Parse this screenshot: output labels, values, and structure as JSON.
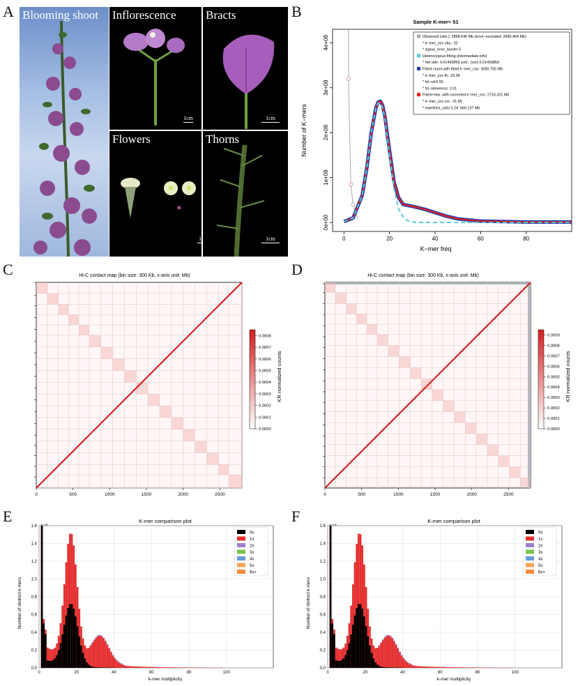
{
  "panel_labels": {
    "A": "A",
    "B": "B",
    "C": "C",
    "D": "D",
    "E": "E",
    "F": "F"
  },
  "panel_a": {
    "blooming": "Blooming shoot",
    "inflorescence": "Inflorescence",
    "bracts": "Bracts",
    "flowers": "Flowers",
    "thorns": "Thorns",
    "scale": "1cm"
  },
  "chart_data": [
    {
      "type": "line",
      "panel": "B",
      "title": "Sample K-mer= 51",
      "xlabel": "K−mer freq",
      "ylabel": "Number of K−mers",
      "xlim": [
        -5,
        100
      ],
      "ylim": [
        -20000000.0,
        430000000.0
      ],
      "x_ticks": [
        "0",
        "20",
        "40",
        "60",
        "80"
      ],
      "y_ticks": [
        "0e+00",
        "1e+08",
        "2e+08",
        "3e+08",
        "4e+08"
      ],
      "legend": [
        {
          "text": "Observed (obs.): 2898.646 Mb (error−excluded: 2686.464 Mb)",
          "color": "#aaaaaa"
        },
        {
          "text": "* k−mer_cov obs.: 32",
          "color": null
        },
        {
          "text": "* signal_error_border 5",
          "color": null
        },
        {
          "text": "Heterozygous fitting (intermediate info)",
          "color": "#5bc8d8"
        },
        {
          "text": "* het rate: 0.01493859 (ori) ; (cor) 0.01493859",
          "color": null
        },
        {
          "text": "Fitted count with fitted k−mer_cov: 3050.755 Mb",
          "color": "#1f3fae"
        },
        {
          "text": "* k−mer_cov fit.: 29.06",
          "color": null
        },
        {
          "text": "* fsl−sd:6.55",
          "color": null
        },
        {
          "text": "* fsl−skewness: 2.01",
          "color": null
        },
        {
          "text": "Fitted+obs. with corrected k−mer_cov: 2716.321 Mb",
          "color": "#e02020"
        },
        {
          "text": "* k−mer_cov cor.: 31.85",
          "color": null
        },
        {
          "text": "* repetitive_ratio 0.24: 660.137 Mb",
          "color": null
        }
      ],
      "observed_points": [
        [
          2,
          320000000.0
        ],
        [
          3,
          85000000.0
        ],
        [
          4,
          40000000.0
        ]
      ],
      "series": [
        {
          "name": "Fitted count",
          "color": "#1f3fae",
          "x": [
            0,
            4,
            8,
            10,
            12,
            14,
            15,
            16,
            17,
            18,
            20,
            22,
            24,
            26,
            28,
            30,
            35,
            40,
            45,
            50,
            60,
            80,
            100
          ],
          "y": [
            2000000.0,
            10000000.0,
            60000000.0,
            120000000.0,
            200000000.0,
            255000000.0,
            268000000.0,
            270000000.0,
            260000000.0,
            235000000.0,
            160000000.0,
            90000000.0,
            55000000.0,
            40000000.0,
            38000000.0,
            36000000.0,
            30000000.0,
            22000000.0,
            14000000.0,
            8000000.0,
            3000000.0,
            1000000.0,
            1000000.0
          ]
        },
        {
          "name": "Fitted+obs.",
          "color": "#e02020",
          "x": [
            0,
            4,
            8,
            10,
            12,
            14,
            15,
            16,
            17,
            18,
            20,
            22,
            24,
            26,
            28,
            30,
            35,
            40,
            45,
            50,
            60,
            80,
            100
          ],
          "y": [
            2000000.0,
            10000000.0,
            60000000.0,
            120000000.0,
            200000000.0,
            255000000.0,
            268000000.0,
            270000000.0,
            260000000.0,
            235000000.0,
            160000000.0,
            90000000.0,
            55000000.0,
            40000000.0,
            38000000.0,
            36000000.0,
            30000000.0,
            22000000.0,
            14000000.0,
            8000000.0,
            3000000.0,
            1000000.0,
            1000000.0
          ]
        },
        {
          "name": "Heterozygous fitting",
          "color": "#5bc8d8",
          "x": [
            0,
            4,
            8,
            10,
            12,
            14,
            15,
            16,
            17,
            18,
            20,
            22,
            24,
            26,
            28,
            30,
            35,
            40,
            50,
            60,
            80,
            100
          ],
          "y": [
            2000000.0,
            10000000.0,
            60000000.0,
            120000000.0,
            200000000.0,
            255000000.0,
            266000000.0,
            266000000.0,
            255000000.0,
            230000000.0,
            150000000.0,
            75000000.0,
            30000000.0,
            12000000.0,
            4000000.0,
            1000000.0,
            0,
            0,
            0,
            0,
            0,
            0
          ]
        }
      ]
    },
    {
      "type": "heatmap",
      "panel": "C",
      "title": "Hi-C contact map (bin size: 300 Kb, x-axis unit: Mb)",
      "x_ticks": [
        "0",
        "500",
        "1000",
        "1500",
        "2000",
        "2500"
      ],
      "xlim": [
        0,
        2800
      ],
      "colorbar_label": "KR normalized counts",
      "colorbar_ticks": [
        "0.0000",
        "0.0001",
        "0.0002",
        "0.0003",
        "0.0004",
        "0.0005",
        "0.0006",
        "0.0007",
        "0.0008"
      ],
      "chromosome_boundaries_mb": [
        150,
        300,
        440,
        580,
        720,
        880,
        1040,
        1200,
        1360,
        1520,
        1680,
        1840,
        2000,
        2160,
        2320,
        2480,
        2620,
        2800
      ]
    },
    {
      "type": "heatmap",
      "panel": "D",
      "title": "Hi-C contact map (bin size: 300 Kb, x-axis unit: Mb)",
      "x_ticks": [
        "0",
        "500",
        "1000",
        "1500",
        "2000",
        "2500"
      ],
      "xlim": [
        0,
        2800
      ],
      "colorbar_label": "KR normalized counts",
      "colorbar_ticks": [
        "0.0000",
        "0.0001",
        "0.0002",
        "0.0003",
        "0.0004",
        "0.0005",
        "0.0006",
        "0.0007",
        "0.0008",
        "0.0009"
      ],
      "chromosome_boundaries_mb": [
        140,
        290,
        430,
        570,
        710,
        860,
        1010,
        1160,
        1310,
        1460,
        1610,
        1760,
        1910,
        2060,
        2210,
        2360,
        2510,
        2660,
        2780
      ]
    },
    {
      "type": "bar",
      "panel": "E",
      "title": "K-mer comparison plot",
      "xlabel": "k-mer multiplicity",
      "ylabel": "Number of distinct k-mers",
      "y_scale_label": "1e8",
      "xlim": [
        0,
        125
      ],
      "ylim": [
        0,
        1.6
      ],
      "x_ticks": [
        "0",
        "20",
        "40",
        "60",
        "80",
        "100"
      ],
      "y_ticks": [
        "0.0",
        "0.2",
        "0.4",
        "0.6",
        "0.8",
        "1.0",
        "1.2",
        "1.4",
        "1.6"
      ],
      "legend": [
        {
          "name": "0x",
          "color": "#000000"
        },
        {
          "name": "1x",
          "color": "#e53030"
        },
        {
          "name": "2x",
          "color": "#9b7fc9"
        },
        {
          "name": "3x",
          "color": "#7bc44b"
        },
        {
          "name": "4x",
          "color": "#6a9bd8"
        },
        {
          "name": "5x",
          "color": "#f2a65a"
        },
        {
          "name": "6x+",
          "color": "#f08c3a"
        }
      ]
    },
    {
      "type": "bar",
      "panel": "F",
      "title": "K-mer comparison plot",
      "xlabel": "k-mer multiplicity",
      "ylabel": "Number of distinct k-mers",
      "y_scale_label": "1e8",
      "xlim": [
        0,
        125
      ],
      "ylim": [
        0,
        1.6
      ],
      "x_ticks": [
        "0",
        "20",
        "40",
        "60",
        "80",
        "100"
      ],
      "y_ticks": [
        "0.0",
        "0.2",
        "0.4",
        "0.6",
        "0.8",
        "1.0",
        "1.2",
        "1.4",
        "1.6"
      ],
      "legend": [
        {
          "name": "0x",
          "color": "#000000"
        },
        {
          "name": "1x",
          "color": "#e53030"
        },
        {
          "name": "2x",
          "color": "#9b7fc9"
        },
        {
          "name": "3x",
          "color": "#7bc44b"
        },
        {
          "name": "4x",
          "color": "#6a9bd8"
        },
        {
          "name": "5x",
          "color": "#f2a65a"
        },
        {
          "name": "6x+",
          "color": "#f08c3a"
        }
      ]
    }
  ]
}
